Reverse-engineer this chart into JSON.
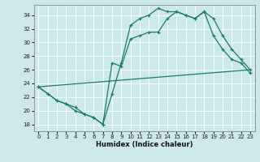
{
  "xlabel": "Humidex (Indice chaleur)",
  "xlim": [
    -0.5,
    23.5
  ],
  "ylim": [
    17,
    35.5
  ],
  "yticks": [
    18,
    20,
    22,
    24,
    26,
    28,
    30,
    32,
    34
  ],
  "xticks": [
    0,
    1,
    2,
    3,
    4,
    5,
    6,
    7,
    8,
    9,
    10,
    11,
    12,
    13,
    14,
    15,
    16,
    17,
    18,
    19,
    20,
    21,
    22,
    23
  ],
  "bg_color": "#cce8e8",
  "grid_color": "#b8d8d8",
  "line_color": "#1a7a6e",
  "line1_x": [
    0,
    1,
    2,
    3,
    4,
    5,
    6,
    7,
    8,
    9,
    10,
    11,
    12,
    13,
    14,
    15,
    16,
    17,
    18,
    19,
    20,
    21,
    22,
    23
  ],
  "line1_y": [
    23.5,
    22.5,
    21.5,
    21.0,
    20.5,
    19.5,
    19.0,
    18.0,
    22.5,
    27.0,
    32.5,
    33.5,
    34.0,
    35.0,
    34.5,
    34.5,
    34.0,
    33.5,
    34.5,
    33.5,
    31.0,
    29.0,
    27.5,
    26.0
  ],
  "line2_x": [
    0,
    1,
    2,
    3,
    4,
    5,
    6,
    7,
    8,
    9,
    10,
    11,
    12,
    13,
    14,
    15,
    16,
    17,
    18,
    19,
    20,
    21,
    22,
    23
  ],
  "line2_y": [
    23.5,
    22.5,
    21.5,
    21.0,
    20.0,
    19.5,
    19.0,
    18.0,
    27.0,
    26.5,
    30.5,
    31.0,
    31.5,
    31.5,
    33.5,
    34.5,
    34.0,
    33.5,
    34.5,
    31.0,
    29.0,
    27.5,
    27.0,
    25.5
  ],
  "line3_x": [
    0,
    23
  ],
  "line3_y": [
    23.5,
    26.0
  ]
}
